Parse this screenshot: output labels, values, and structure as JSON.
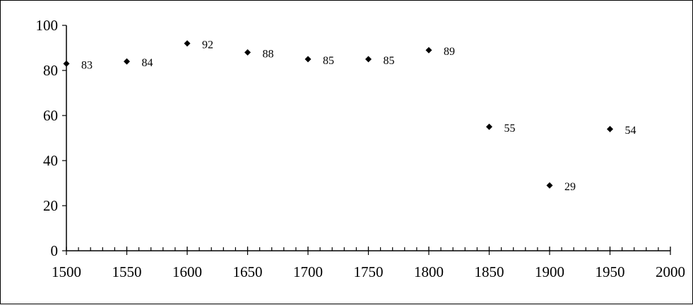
{
  "chart_data": {
    "type": "scatter",
    "title": "",
    "xlabel": "",
    "ylabel": "",
    "xlim": [
      1500,
      2000
    ],
    "ylim": [
      0,
      100
    ],
    "x_ticks": [
      1500,
      1550,
      1600,
      1650,
      1700,
      1750,
      1800,
      1850,
      1900,
      1950,
      2000
    ],
    "y_ticks": [
      0,
      20,
      40,
      60,
      80,
      100
    ],
    "x_minor_step": 10,
    "grid": false,
    "legend": "none",
    "marker": "diamond",
    "marker_color": "#000000",
    "points": [
      {
        "x": 1500,
        "y": 83,
        "label": "83"
      },
      {
        "x": 1550,
        "y": 84,
        "label": "84"
      },
      {
        "x": 1600,
        "y": 92,
        "label": "92"
      },
      {
        "x": 1650,
        "y": 88,
        "label": "88"
      },
      {
        "x": 1700,
        "y": 85,
        "label": "85"
      },
      {
        "x": 1750,
        "y": 85,
        "label": "85"
      },
      {
        "x": 1800,
        "y": 89,
        "label": "89"
      },
      {
        "x": 1850,
        "y": 55,
        "label": "55"
      },
      {
        "x": 1900,
        "y": 29,
        "label": "29"
      },
      {
        "x": 1950,
        "y": 54,
        "label": "54"
      }
    ]
  }
}
